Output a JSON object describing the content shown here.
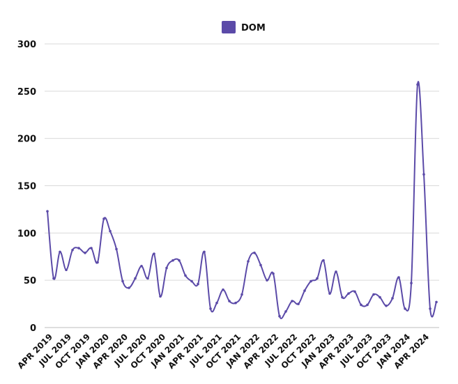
{
  "chart_data": {
    "type": "line",
    "legend_position": "top-center",
    "grid": true,
    "ylim": [
      0,
      300
    ],
    "y_ticks": [
      0,
      50,
      100,
      150,
      200,
      250,
      300
    ],
    "x_tick_labels": [
      "APR 2019",
      "JUL 2019",
      "OCT 2019",
      "JAN 2020",
      "APR 2020",
      "JUL 2020",
      "OCT 2020",
      "JAN 2021",
      "APR 2021",
      "JUL 2021",
      "OCT 2021",
      "JAN 2022",
      "APR 2022",
      "JUL 2022",
      "OCT 2022",
      "JAN 2023",
      "APR 2023",
      "JUL 2023",
      "OCT 2023",
      "JAN 2024",
      "APR 2024"
    ],
    "x": [
      "2019-04",
      "2019-05",
      "2019-06",
      "2019-07",
      "2019-08",
      "2019-09",
      "2019-10",
      "2019-11",
      "2019-12",
      "2020-01",
      "2020-02",
      "2020-03",
      "2020-04",
      "2020-05",
      "2020-06",
      "2020-07",
      "2020-08",
      "2020-09",
      "2020-10",
      "2020-11",
      "2020-12",
      "2021-01",
      "2021-02",
      "2021-03",
      "2021-04",
      "2021-05",
      "2021-06",
      "2021-07",
      "2021-08",
      "2021-09",
      "2021-10",
      "2021-11",
      "2021-12",
      "2022-01",
      "2022-02",
      "2022-03",
      "2022-04",
      "2022-05",
      "2022-06",
      "2022-07",
      "2022-08",
      "2022-09",
      "2022-10",
      "2022-11",
      "2022-12",
      "2023-01",
      "2023-02",
      "2023-03",
      "2023-04",
      "2023-05",
      "2023-06",
      "2023-07",
      "2023-08",
      "2023-09",
      "2023-10",
      "2023-11",
      "2023-12",
      "2024-01",
      "2024-02",
      "2024-03",
      "2024-04",
      "2024-05",
      "2024-06"
    ],
    "series": [
      {
        "name": "DOM",
        "color": "#5b4aa8",
        "values": [
          123,
          52,
          80,
          61,
          82,
          84,
          79,
          84,
          69,
          115,
          102,
          83,
          49,
          42,
          52,
          65,
          52,
          78,
          33,
          63,
          71,
          71,
          55,
          49,
          46,
          80,
          20,
          26,
          40,
          28,
          26,
          35,
          70,
          79,
          66,
          50,
          57,
          12,
          17,
          28,
          25,
          39,
          49,
          52,
          71,
          36,
          59,
          32,
          36,
          38,
          24,
          24,
          35,
          32,
          23,
          31,
          53,
          20,
          47,
          257,
          162,
          20,
          27
        ]
      }
    ]
  }
}
